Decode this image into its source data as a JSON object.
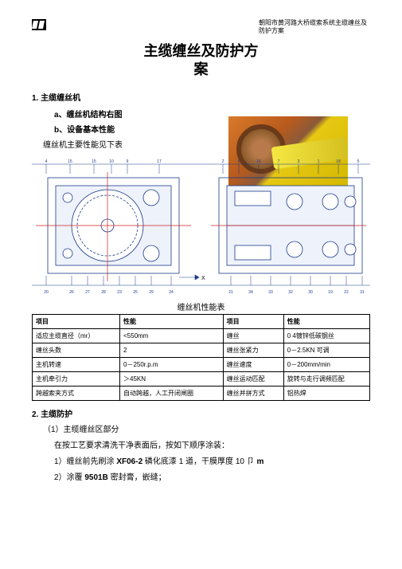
{
  "header": {
    "doc_ref": "朝阳市黄河路大桥缆索系统主缆缠丝及防护方案"
  },
  "title_line1": "主缆缠丝及防护方",
  "title_line2": "案",
  "section1": {
    "num": "1.",
    "label": "主缆缠丝机",
    "a": "a、缠丝机结构右图",
    "b": "b、设备基本性能",
    "note": "缠丝机主要性能见下表"
  },
  "diagram": {
    "axis_marks": [
      "4",
      "15",
      "15",
      "10",
      "9",
      "17",
      "2",
      "6",
      "16",
      "7",
      "3",
      "1",
      "18",
      "5"
    ],
    "x_label": "X",
    "bottom_marks": [
      "20",
      "26",
      "27",
      "28",
      "23",
      "25",
      "29",
      "24",
      "21",
      "34",
      "33",
      "32",
      "30",
      "19",
      "22",
      "31"
    ],
    "colors": {
      "line": "#1a3a8a",
      "accent": "#cc2020",
      "light": "#a8b8d8"
    }
  },
  "table": {
    "caption": "缠丝机性能表",
    "headers": [
      "项目",
      "性能",
      "项目",
      "性能"
    ],
    "rows": [
      [
        "适应主缆直径（mr）",
        "<550mm",
        "缠丝",
        "0 4镀锌低碳钢丝"
      ],
      [
        "缠丝头数",
        "2",
        "缠丝张紧力",
        "0－2.5KN 可调"
      ],
      [
        "主机转速",
        "0－250r.p.m",
        "缠丝速度",
        "0－200mm/min"
      ],
      [
        "主机牵引力",
        "＞45KN",
        "缠丝运动匹配",
        "旋转与走行调频匹配"
      ],
      [
        "跨越索夹方式",
        "自动跨越，人工开闭闸圈",
        "缠丝并拼方式",
        "铝热焊"
      ]
    ]
  },
  "section2": {
    "num": "2.",
    "label": "主缆防护",
    "sub1": "（1）主缆缠丝区部分",
    "line1": "在按工艺要求清洗干净表面后，按如下顺序涂装：",
    "item1": "1）缠丝前先刷涂 XF06-2 磷化底漆 1 道，干膜厚度 10 卩 m",
    "item2": "2）涂覆 9501B 密封膏，嵌缝；"
  }
}
